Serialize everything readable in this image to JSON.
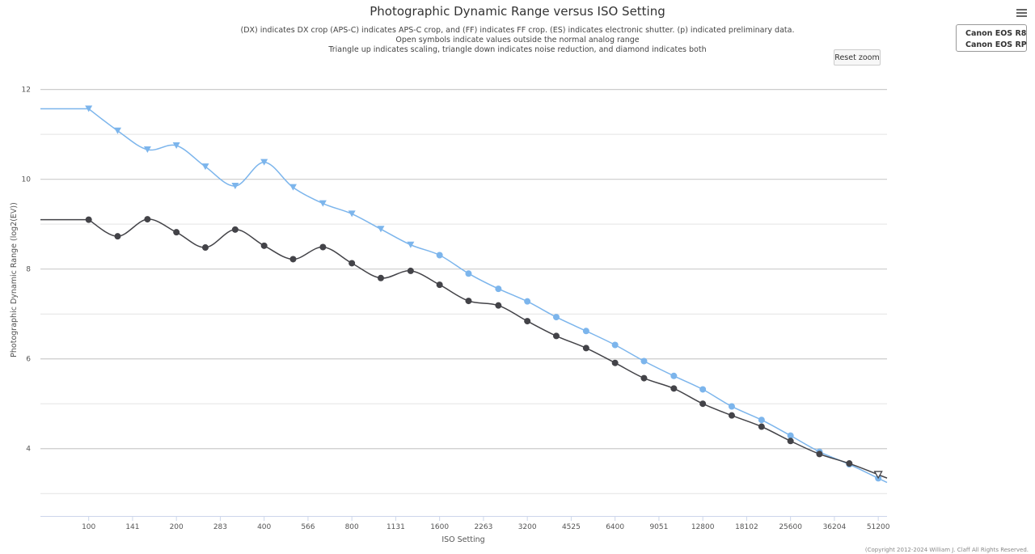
{
  "title": "Photographic Dynamic Range versus ISO Setting",
  "subtitle_lines": [
    "(DX) indicates DX crop (APS-C) indicates APS-C crop, and (FF) indicates FF crop. (ES) indicates electronic shutter. (p) indicated preliminary data.",
    "Open symbols indicate values outside the normal analog range",
    "Triangle up indicates scaling, triangle down indicates noise reduction, and diamond indicates both"
  ],
  "reset_zoom_label": "Reset zoom",
  "menu_icon": "hamburger-menu-icon",
  "credits": "(Copyright 2012-2024 William J. Claff All Rights Reserved.",
  "legend": [
    {
      "name": "Canon EOS R8",
      "color": "#7cb5ec"
    },
    {
      "name": "Canon EOS RP",
      "color": "#434348"
    }
  ],
  "chart_data": {
    "type": "line",
    "title": "Photographic Dynamic Range versus ISO Setting",
    "xlabel": "ISO Setting",
    "ylabel": "Photographic Dynamic Range (log2(EV))",
    "x_scale": "log2",
    "x_ticks": [
      "100",
      "141",
      "200",
      "283",
      "400",
      "566",
      "800",
      "1131",
      "1600",
      "2263",
      "3200",
      "4525",
      "6400",
      "9051",
      "12800",
      "18102",
      "25600",
      "36204",
      "51200"
    ],
    "y_ticks": [
      4,
      6,
      8,
      10,
      12
    ],
    "ylim": [
      2.5,
      12.3
    ],
    "xlim_ev": [
      -0.55,
      9.1
    ],
    "grid": true,
    "legend_position": "top-right",
    "series": [
      {
        "name": "Canon EOS R8",
        "color": "#7cb5ec",
        "points": [
          {
            "ev": 0.0,
            "y": 11.57,
            "marker": "triangle-down"
          },
          {
            "ev": 0.33,
            "y": 11.08,
            "marker": "triangle-down"
          },
          {
            "ev": 0.67,
            "y": 10.66,
            "marker": "triangle-down"
          },
          {
            "ev": 1.0,
            "y": 10.75,
            "marker": "triangle-down"
          },
          {
            "ev": 1.33,
            "y": 10.28,
            "marker": "triangle-down"
          },
          {
            "ev": 1.67,
            "y": 9.85,
            "marker": "triangle-down"
          },
          {
            "ev": 2.0,
            "y": 10.38,
            "marker": "triangle-down"
          },
          {
            "ev": 2.33,
            "y": 9.82,
            "marker": "triangle-down"
          },
          {
            "ev": 2.67,
            "y": 9.46,
            "marker": "triangle-down"
          },
          {
            "ev": 3.0,
            "y": 9.23,
            "marker": "triangle-down"
          },
          {
            "ev": 3.33,
            "y": 8.89,
            "marker": "triangle-down"
          },
          {
            "ev": 3.67,
            "y": 8.54,
            "marker": "triangle-down"
          },
          {
            "ev": 4.0,
            "y": 8.31,
            "marker": "circle"
          },
          {
            "ev": 4.33,
            "y": 7.9,
            "marker": "circle"
          },
          {
            "ev": 4.67,
            "y": 7.56,
            "marker": "circle"
          },
          {
            "ev": 5.0,
            "y": 7.28,
            "marker": "circle"
          },
          {
            "ev": 5.33,
            "y": 6.93,
            "marker": "circle"
          },
          {
            "ev": 5.67,
            "y": 6.62,
            "marker": "circle"
          },
          {
            "ev": 6.0,
            "y": 6.31,
            "marker": "circle"
          },
          {
            "ev": 6.33,
            "y": 5.95,
            "marker": "circle"
          },
          {
            "ev": 6.67,
            "y": 5.62,
            "marker": "circle"
          },
          {
            "ev": 7.0,
            "y": 5.32,
            "marker": "circle"
          },
          {
            "ev": 7.33,
            "y": 4.94,
            "marker": "circle"
          },
          {
            "ev": 7.67,
            "y": 4.64,
            "marker": "circle"
          },
          {
            "ev": 8.0,
            "y": 4.29,
            "marker": "circle"
          },
          {
            "ev": 8.33,
            "y": 3.93,
            "marker": "circle"
          },
          {
            "ev": 8.67,
            "y": 3.65,
            "marker": "circle"
          },
          {
            "ev": 9.0,
            "y": 3.34,
            "marker": "circle"
          }
        ]
      },
      {
        "name": "Canon EOS RP",
        "color": "#434348",
        "points": [
          {
            "ev": 0.0,
            "y": 9.1,
            "marker": "circle"
          },
          {
            "ev": 0.33,
            "y": 8.73,
            "marker": "circle"
          },
          {
            "ev": 0.67,
            "y": 9.11,
            "marker": "circle"
          },
          {
            "ev": 1.0,
            "y": 8.82,
            "marker": "circle"
          },
          {
            "ev": 1.33,
            "y": 8.48,
            "marker": "circle"
          },
          {
            "ev": 1.67,
            "y": 8.88,
            "marker": "circle"
          },
          {
            "ev": 2.0,
            "y": 8.52,
            "marker": "circle"
          },
          {
            "ev": 2.33,
            "y": 8.22,
            "marker": "circle"
          },
          {
            "ev": 2.67,
            "y": 8.49,
            "marker": "circle"
          },
          {
            "ev": 3.0,
            "y": 8.13,
            "marker": "circle"
          },
          {
            "ev": 3.33,
            "y": 7.8,
            "marker": "circle"
          },
          {
            "ev": 3.67,
            "y": 7.96,
            "marker": "circle"
          },
          {
            "ev": 4.0,
            "y": 7.65,
            "marker": "circle"
          },
          {
            "ev": 4.33,
            "y": 7.29,
            "marker": "circle"
          },
          {
            "ev": 4.67,
            "y": 7.19,
            "marker": "circle"
          },
          {
            "ev": 5.0,
            "y": 6.84,
            "marker": "circle"
          },
          {
            "ev": 5.33,
            "y": 6.51,
            "marker": "circle"
          },
          {
            "ev": 5.67,
            "y": 6.24,
            "marker": "circle"
          },
          {
            "ev": 6.0,
            "y": 5.91,
            "marker": "circle"
          },
          {
            "ev": 6.33,
            "y": 5.57,
            "marker": "circle"
          },
          {
            "ev": 6.67,
            "y": 5.34,
            "marker": "circle"
          },
          {
            "ev": 7.0,
            "y": 5.0,
            "marker": "circle"
          },
          {
            "ev": 7.33,
            "y": 4.74,
            "marker": "circle"
          },
          {
            "ev": 7.67,
            "y": 4.49,
            "marker": "circle"
          },
          {
            "ev": 8.0,
            "y": 4.17,
            "marker": "circle"
          },
          {
            "ev": 8.33,
            "y": 3.88,
            "marker": "circle"
          },
          {
            "ev": 8.67,
            "y": 3.67,
            "marker": "circle"
          },
          {
            "ev": 9.0,
            "y": 3.42,
            "marker": "triangle-down-open"
          }
        ]
      }
    ]
  }
}
